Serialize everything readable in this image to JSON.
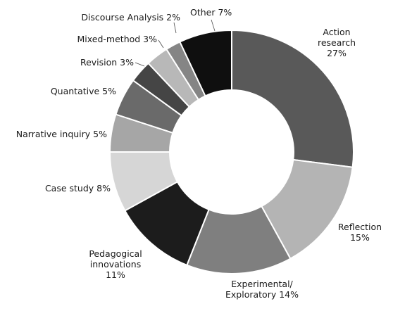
{
  "chart_data": {
    "type": "pie",
    "donut": true,
    "title": "",
    "slices": [
      {
        "name": "Action research",
        "value": 27,
        "label_lines": [
          "Action",
          "research",
          "27%"
        ],
        "color": "#595959"
      },
      {
        "name": "Reflection",
        "value": 15,
        "label_lines": [
          "Reflection",
          "15%"
        ],
        "color": "#b4b4b4"
      },
      {
        "name": "Experimental/ Exploratory",
        "value": 14,
        "label_lines": [
          "Experimental/",
          "Exploratory 14%"
        ],
        "color": "#7f7f7f"
      },
      {
        "name": "Pedagogical innovations",
        "value": 11,
        "label_lines": [
          "Pedagogical",
          "innovations",
          "11%"
        ],
        "color": "#1c1c1c"
      },
      {
        "name": "Case study",
        "value": 8,
        "label_lines": [
          "Case study 8%"
        ],
        "color": "#d6d6d6"
      },
      {
        "name": "Narrative inquiry",
        "value": 5,
        "label_lines": [
          "Narrative inquiry 5%"
        ],
        "color": "#a6a6a6"
      },
      {
        "name": "Quantative",
        "value": 5,
        "label_lines": [
          "Quantative 5%"
        ],
        "color": "#6a6a6a"
      },
      {
        "name": "Revision",
        "value": 3,
        "label_lines": [
          "Revision 3%"
        ],
        "color": "#454545"
      },
      {
        "name": "Mixed-method",
        "value": 3,
        "label_lines": [
          "Mixed-method 3%"
        ],
        "color": "#b8b8b8"
      },
      {
        "name": "Discourse Analysis",
        "value": 2,
        "label_lines": [
          "Discourse Analysis 2%"
        ],
        "color": "#858585"
      },
      {
        "name": "Other",
        "value": 7,
        "label_lines": [
          "Other 7%"
        ],
        "color": "#0f0f0f"
      }
    ]
  }
}
